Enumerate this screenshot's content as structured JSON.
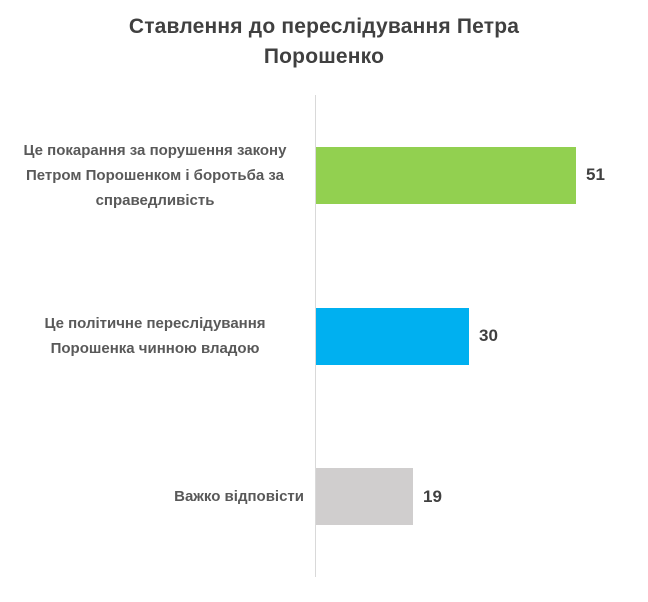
{
  "chart_data": {
    "type": "bar",
    "orientation": "horizontal",
    "title": "Ставлення до переслідування Петра Порошенко",
    "categories": [
      "Це покарання за порушення закону Петром Порошенком і боротьба за справедливість",
      "Це політичне переслідування Порошенка чинною владою",
      "Важко відповісти"
    ],
    "values": [
      51,
      30,
      19
    ],
    "value_labels": [
      "51",
      "30",
      "19"
    ],
    "bar_colors": [
      "#92D050",
      "#00B0F0",
      "#D0CECE"
    ],
    "xlabel": "",
    "ylabel": "",
    "xlim": [
      0,
      65
    ],
    "grid": false,
    "legend": false,
    "data_labels_shown": true
  },
  "colors": {
    "background": "#FFFFFF",
    "title_text": "#404040",
    "category_text": "#595959",
    "value_text": "#404040",
    "axis_line": "#D9D9D9"
  }
}
